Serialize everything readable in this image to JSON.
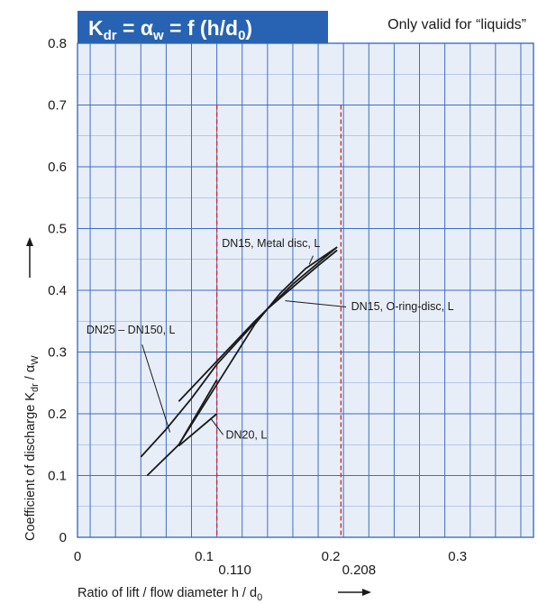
{
  "chart_data": {
    "type": "line",
    "title": {
      "k": "K",
      "k_sub": "dr",
      "eq1": " = ",
      "alpha": "α",
      "alpha_sub": "w",
      "eq2": " = f (h/d",
      "d_sub": "0",
      "close": ")"
    },
    "note": "Only valid for “liquids”",
    "xlabel": {
      "text": "Ratio of lift / flow diameter h / d",
      "sub": "0"
    },
    "ylabel": {
      "text": "Coefficient of discharge K",
      "sub1": "dr",
      "mid": " / α",
      "sub2": "W"
    },
    "xlim": [
      0,
      0.36
    ],
    "ylim": [
      0,
      0.8
    ],
    "x_ticks": [
      {
        "value": 0,
        "label": "0"
      },
      {
        "value": 0.1,
        "label": "0.1"
      },
      {
        "value": 0.2,
        "label": "0.2"
      },
      {
        "value": 0.3,
        "label": "0.3"
      }
    ],
    "y_ticks": [
      {
        "value": 0,
        "label": "0"
      },
      {
        "value": 0.1,
        "label": "0.1"
      },
      {
        "value": 0.2,
        "label": "0.2"
      },
      {
        "value": 0.3,
        "label": "0.3"
      },
      {
        "value": 0.4,
        "label": "0.4"
      },
      {
        "value": 0.5,
        "label": "0.5"
      },
      {
        "value": 0.6,
        "label": "0.6"
      },
      {
        "value": 0.7,
        "label": "0.7"
      },
      {
        "value": 0.8,
        "label": "0.8"
      }
    ],
    "grid": true,
    "ref_lines": [
      {
        "x": 0.11,
        "label": "0.110",
        "y_top": 0.7
      },
      {
        "x": 0.208,
        "label": "0.208",
        "y_top": 0.7
      }
    ],
    "series": [
      {
        "name": "DN25 – DN150, L",
        "x": [
          0.05,
          0.07,
          0.09,
          0.11,
          0.13,
          0.15,
          0.17,
          0.19,
          0.205
        ],
        "y": [
          0.13,
          0.175,
          0.225,
          0.28,
          0.325,
          0.37,
          0.405,
          0.44,
          0.465
        ]
      },
      {
        "name": "DN15, Metal disc, L",
        "x": [
          0.08,
          0.11,
          0.14,
          0.17,
          0.205
        ],
        "y": [
          0.22,
          0.285,
          0.35,
          0.41,
          0.47
        ]
      },
      {
        "name": "DN15, O-ring-disc, L",
        "x": [
          0.08,
          0.1,
          0.12,
          0.14,
          0.16,
          0.18,
          0.205
        ],
        "y": [
          0.15,
          0.215,
          0.28,
          0.345,
          0.395,
          0.435,
          0.47
        ]
      },
      {
        "name": "DN20, L",
        "x": [
          0.055,
          0.08,
          0.11
        ],
        "y": [
          0.1,
          0.15,
          0.255
        ]
      },
      {
        "name": "",
        "x": [
          0.08,
          0.11
        ],
        "y": [
          0.148,
          0.2
        ]
      }
    ],
    "annotations": [
      {
        "text": "DN15, Metal disc, L",
        "tx": 0.114,
        "ty": 0.47,
        "px": 0.183,
        "py": 0.442,
        "lx": 0.186,
        "ly": 0.456
      },
      {
        "text": "DN15, O-ring-disc, L",
        "tx": 0.216,
        "ty": 0.368,
        "px": 0.164,
        "py": 0.383,
        "lx": 0.212,
        "ly": 0.373
      },
      {
        "text": "DN25 – DN150, L",
        "tx": 0.007,
        "ty": 0.33,
        "px": 0.073,
        "py": 0.17,
        "lx": 0.051,
        "ly": 0.312
      },
      {
        "text": "DN20, L",
        "tx": 0.117,
        "ty": 0.16,
        "px": 0.105,
        "py": 0.193,
        "lx": 0.115,
        "ly": 0.166
      }
    ],
    "colors": {
      "title_bg": "#2763b2",
      "grid": "#3d6fc6",
      "background": "#e8eef8",
      "ref_line": "#d62828",
      "curve": "#1a1a1a"
    }
  }
}
